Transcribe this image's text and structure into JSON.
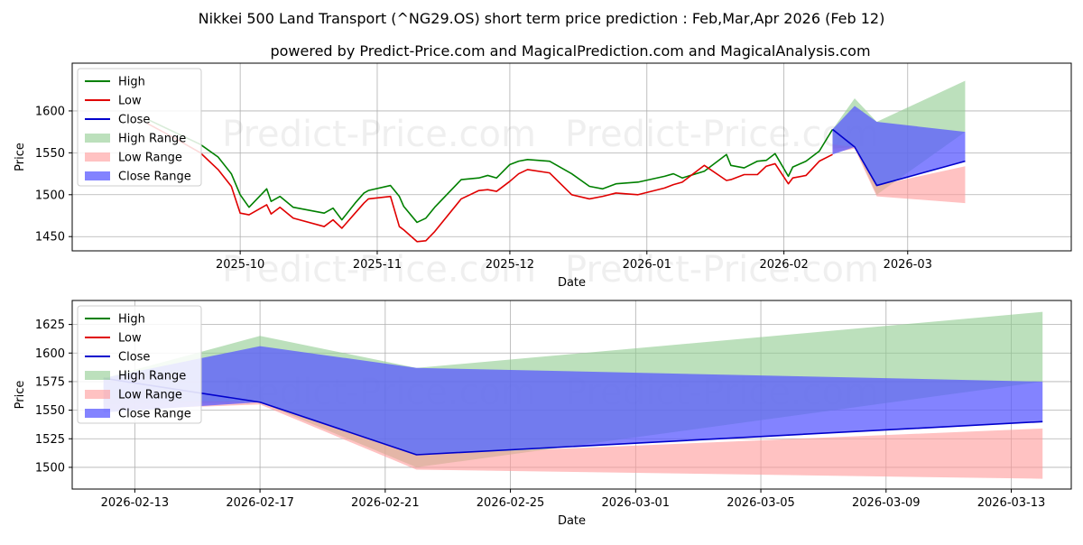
{
  "page": {
    "title": "Nikkei 500 Land Transport (^NG29.OS) short term price prediction : Feb,Mar,Apr 2026 (Feb 12)",
    "subtitle": "powered by Predict-Price.com and MagicalPrediction.com and MagicalAnalysis.com",
    "watermark": "Predict-Price.com"
  },
  "colors": {
    "high": "#008000",
    "low": "#e00000",
    "close": "#0000cc",
    "high_range": "#8fcc8f",
    "low_range": "#ff9999",
    "close_range": "#5a5aff"
  },
  "chart_data": [
    {
      "type": "line",
      "title": "",
      "xlabel": "Date",
      "ylabel": "Price",
      "xlim": [
        "2025-08-24",
        "2026-04-07"
      ],
      "ylim": [
        1433,
        1657
      ],
      "xticks": [
        "2025-10",
        "2025-11",
        "2025-12",
        "2026-01",
        "2026-02",
        "2026-03"
      ],
      "xtick_dates": [
        "2025-10-01",
        "2025-11-01",
        "2025-12-01",
        "2026-01-01",
        "2026-02-01",
        "2026-03-01"
      ],
      "yticks": [
        1450,
        1500,
        1550,
        1600
      ],
      "legend": [
        "High",
        "Low",
        "Close",
        "High Range",
        "Low Range",
        "Close Range"
      ],
      "legend_position": "top-left",
      "series": [
        {
          "name": "High",
          "x": [
            "2025-09-10",
            "2025-09-16",
            "2025-09-22",
            "2025-09-26",
            "2025-09-29",
            "2025-10-01",
            "2025-10-03",
            "2025-10-07",
            "2025-10-08",
            "2025-10-10",
            "2025-10-13",
            "2025-10-20",
            "2025-10-22",
            "2025-10-24",
            "2025-10-27",
            "2025-10-29",
            "2025-10-30",
            "2025-11-04",
            "2025-11-06",
            "2025-11-07",
            "2025-11-10",
            "2025-11-12",
            "2025-11-14",
            "2025-11-20",
            "2025-11-24",
            "2025-11-26",
            "2025-11-28",
            "2025-12-01",
            "2025-12-03",
            "2025-12-05",
            "2025-12-10",
            "2025-12-15",
            "2025-12-19",
            "2025-12-22",
            "2025-12-25",
            "2025-12-30",
            "2026-01-05",
            "2026-01-07",
            "2026-01-09",
            "2026-01-14",
            "2026-01-19",
            "2026-01-20",
            "2026-01-23",
            "2026-01-26",
            "2026-01-28",
            "2026-01-30",
            "2026-02-02",
            "2026-02-03",
            "2026-02-06",
            "2026-02-09",
            "2026-02-12"
          ],
          "values": [
            1590,
            1575,
            1560,
            1545,
            1525,
            1500,
            1485,
            1507,
            1492,
            1498,
            1485,
            1478,
            1484,
            1470,
            1490,
            1502,
            1505,
            1511,
            1498,
            1486,
            1467,
            1472,
            1485,
            1518,
            1520,
            1523,
            1520,
            1536,
            1540,
            1542,
            1540,
            1525,
            1510,
            1507,
            1513,
            1515,
            1522,
            1525,
            1520,
            1528,
            1548,
            1535,
            1532,
            1540,
            1541,
            1549,
            1522,
            1533,
            1540,
            1552,
            1578
          ]
        },
        {
          "name": "Low",
          "x": [
            "2025-09-10",
            "2025-09-16",
            "2025-09-22",
            "2025-09-26",
            "2025-09-29",
            "2025-10-01",
            "2025-10-03",
            "2025-10-07",
            "2025-10-08",
            "2025-10-10",
            "2025-10-13",
            "2025-10-20",
            "2025-10-22",
            "2025-10-24",
            "2025-10-27",
            "2025-10-29",
            "2025-10-30",
            "2025-11-04",
            "2025-11-06",
            "2025-11-07",
            "2025-11-10",
            "2025-11-12",
            "2025-11-14",
            "2025-11-20",
            "2025-11-24",
            "2025-11-26",
            "2025-11-28",
            "2025-12-01",
            "2025-12-03",
            "2025-12-05",
            "2025-12-10",
            "2025-12-15",
            "2025-12-19",
            "2025-12-22",
            "2025-12-25",
            "2025-12-30",
            "2026-01-05",
            "2026-01-07",
            "2026-01-09",
            "2026-01-14",
            "2026-01-19",
            "2026-01-20",
            "2026-01-23",
            "2026-01-26",
            "2026-01-28",
            "2026-01-30",
            "2026-02-02",
            "2026-02-03",
            "2026-02-06",
            "2026-02-09",
            "2026-02-12"
          ],
          "values": [
            1585,
            1568,
            1550,
            1530,
            1510,
            1478,
            1476,
            1488,
            1477,
            1485,
            1472,
            1462,
            1470,
            1460,
            1478,
            1490,
            1495,
            1498,
            1462,
            1458,
            1444,
            1445,
            1456,
            1495,
            1505,
            1506,
            1504,
            1516,
            1525,
            1530,
            1526,
            1500,
            1495,
            1498,
            1502,
            1500,
            1508,
            1512,
            1515,
            1535,
            1517,
            1518,
            1524,
            1524,
            1534,
            1537,
            1513,
            1520,
            1523,
            1540,
            1548
          ]
        },
        {
          "name": "Close",
          "x": [
            "2026-02-12",
            "2026-02-17",
            "2026-02-22",
            "2026-03-14"
          ],
          "values": [
            1578,
            1557,
            1511,
            1540
          ]
        },
        {
          "name": "High Range",
          "x": [
            "2026-02-12",
            "2026-02-17",
            "2026-02-22",
            "2026-03-14"
          ],
          "upper": [
            1578,
            1615,
            1587,
            1636
          ],
          "lower": [
            1555,
            1557,
            1500,
            1575
          ]
        },
        {
          "name": "Low Range",
          "x": [
            "2026-02-12",
            "2026-02-17",
            "2026-02-22",
            "2026-03-14"
          ],
          "upper": [
            1560,
            1557,
            1511,
            1534
          ],
          "lower": [
            1550,
            1555,
            1498,
            1490
          ]
        },
        {
          "name": "Close Range",
          "x": [
            "2026-02-12",
            "2026-02-17",
            "2026-02-22",
            "2026-03-14"
          ],
          "upper": [
            1578,
            1606,
            1587,
            1575
          ],
          "lower": [
            1548,
            1557,
            1511,
            1540
          ]
        }
      ]
    },
    {
      "type": "line",
      "title": "",
      "xlabel": "Date",
      "ylabel": "Price",
      "xlim": [
        "2026-02-11",
        "2026-03-14T22:00"
      ],
      "ylim": [
        1481,
        1646
      ],
      "xticks": [
        "2026-02-13",
        "2026-02-17",
        "2026-02-21",
        "2026-02-25",
        "2026-03-01",
        "2026-03-05",
        "2026-03-09",
        "2026-03-13"
      ],
      "xtick_dates": [
        "2026-02-13",
        "2026-02-17",
        "2026-02-21",
        "2026-02-25",
        "2026-03-01",
        "2026-03-05",
        "2026-03-09",
        "2026-03-13"
      ],
      "yticks": [
        1500,
        1525,
        1550,
        1575,
        1600,
        1625
      ],
      "legend": [
        "High",
        "Low",
        "Close",
        "High Range",
        "Low Range",
        "Close Range"
      ],
      "legend_position": "top-left",
      "series": [
        {
          "name": "Close",
          "x": [
            "2026-02-12",
            "2026-02-17",
            "2026-02-22",
            "2026-03-14"
          ],
          "values": [
            1578,
            1557,
            1511,
            1540
          ]
        },
        {
          "name": "High Range",
          "x": [
            "2026-02-12",
            "2026-02-17",
            "2026-02-22",
            "2026-03-14"
          ],
          "upper": [
            1578,
            1615,
            1587,
            1636
          ],
          "lower": [
            1555,
            1557,
            1500,
            1575
          ]
        },
        {
          "name": "Low Range",
          "x": [
            "2026-02-12",
            "2026-02-17",
            "2026-02-22",
            "2026-03-14"
          ],
          "upper": [
            1560,
            1557,
            1511,
            1534
          ],
          "lower": [
            1550,
            1555,
            1498,
            1490
          ]
        },
        {
          "name": "Close Range",
          "x": [
            "2026-02-12",
            "2026-02-17",
            "2026-02-22",
            "2026-03-14"
          ],
          "upper": [
            1578,
            1606,
            1587,
            1575
          ],
          "lower": [
            1548,
            1557,
            1511,
            1540
          ]
        }
      ]
    }
  ]
}
